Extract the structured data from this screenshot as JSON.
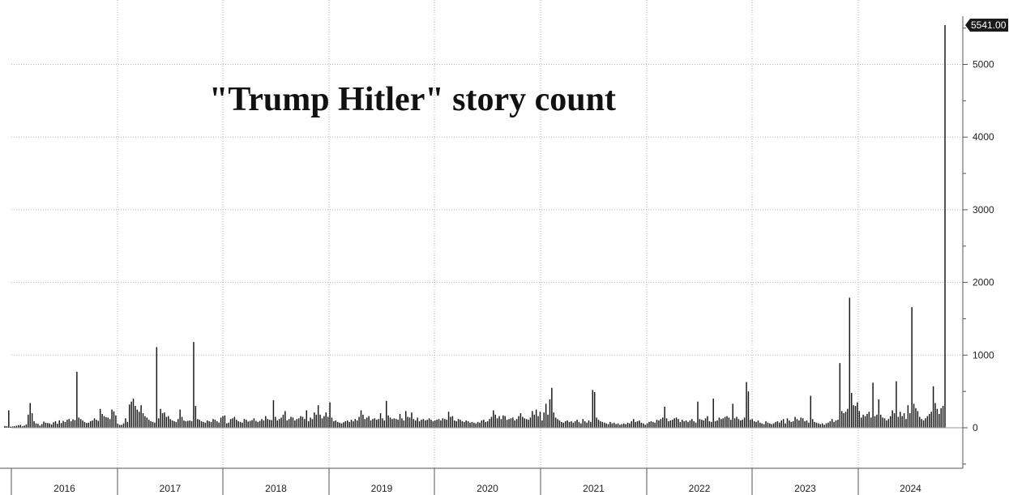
{
  "colors": {
    "bar": "#1a1a1a",
    "grid": "#b5b5b5",
    "axis": "#555555",
    "last_value_badge": "#1a1a1a"
  },
  "chart_data": {
    "type": "bar",
    "title": "\"Trump Hitler\" story count",
    "xlabel": "",
    "ylabel": "",
    "frequency": "weekly",
    "grid": true,
    "ylim": [
      -500,
      5541
    ],
    "y_ticks": [
      0,
      1000,
      2000,
      3000,
      4000,
      5000
    ],
    "x_ticks": [
      "2016",
      "2017",
      "2018",
      "2019",
      "2020",
      "2021",
      "2022",
      "2023",
      "2024"
    ],
    "last_value_label": "5541.00",
    "values": [
      25,
      20,
      240,
      15,
      18,
      22,
      28,
      35,
      40,
      20,
      30,
      45,
      180,
      340,
      200,
      90,
      60,
      55,
      30,
      50,
      85,
      70,
      65,
      60,
      45,
      75,
      90,
      55,
      100,
      65,
      95,
      80,
      110,
      120,
      90,
      115,
      105,
      770,
      140,
      120,
      100,
      80,
      65,
      70,
      90,
      100,
      130,
      110,
      95,
      260,
      190,
      160,
      145,
      140,
      120,
      250,
      225,
      170,
      55,
      40,
      40,
      60,
      130,
      80,
      320,
      360,
      400,
      300,
      250,
      220,
      310,
      200,
      160,
      140,
      110,
      90,
      80,
      70,
      1110,
      130,
      260,
      200,
      210,
      150,
      160,
      120,
      100,
      90,
      80,
      120,
      250,
      150,
      100,
      90,
      95,
      100,
      90,
      1180,
      300,
      120,
      110,
      90,
      80,
      70,
      100,
      90,
      80,
      120,
      110,
      90,
      70,
      140,
      160,
      170,
      60,
      70,
      120,
      130,
      150,
      110,
      90,
      80,
      70,
      120,
      110,
      85,
      95,
      105,
      130,
      95,
      80,
      95,
      120,
      100,
      160,
      120,
      110,
      105,
      380,
      150,
      100,
      120,
      140,
      180,
      230,
      100,
      120,
      150,
      140,
      100,
      120,
      130,
      160,
      150,
      120,
      240,
      90,
      140,
      120,
      210,
      180,
      310,
      180,
      130,
      160,
      210,
      150,
      350,
      140,
      90,
      100,
      80,
      70,
      60,
      75,
      90,
      100,
      80,
      110,
      90,
      120,
      100,
      150,
      240,
      180,
      120,
      140,
      160,
      100,
      120,
      130,
      110,
      120,
      200,
      130,
      100,
      370,
      170,
      140,
      120,
      130,
      120,
      110,
      190,
      130,
      100,
      230,
      150,
      140,
      210,
      120,
      100,
      140,
      90,
      110,
      120,
      100,
      110,
      130,
      110,
      90,
      100,
      110,
      120,
      100,
      130,
      120,
      110,
      220,
      150,
      160,
      100,
      90,
      120,
      110,
      90,
      80,
      100,
      90,
      70,
      80,
      70,
      60,
      80,
      70,
      100,
      110,
      80,
      90,
      120,
      150,
      240,
      180,
      130,
      160,
      120,
      170,
      160,
      110,
      120,
      130,
      140,
      100,
      120,
      160,
      200,
      150,
      130,
      120,
      110,
      140,
      230,
      180,
      250,
      160,
      220,
      100,
      210,
      330,
      180,
      390,
      550,
      210,
      140,
      120,
      100,
      80,
      70,
      90,
      100,
      80,
      90,
      70,
      90,
      110,
      80,
      60,
      120,
      90,
      70,
      100,
      80,
      520,
      490,
      140,
      110,
      90,
      80,
      70,
      60,
      50,
      80,
      60,
      70,
      50,
      60,
      40,
      50,
      60,
      50,
      70,
      60,
      90,
      120,
      80,
      90,
      100,
      70,
      60,
      40,
      60,
      80,
      90,
      80,
      70,
      110,
      100,
      120,
      140,
      290,
      130,
      90,
      100,
      110,
      130,
      140,
      120,
      80,
      110,
      90,
      100,
      80,
      100,
      120,
      90,
      70,
      360,
      120,
      110,
      100,
      130,
      160,
      90,
      80,
      400,
      90,
      100,
      140,
      120,
      130,
      150,
      160,
      140,
      110,
      330,
      130,
      150,
      120,
      100,
      110,
      140,
      630,
      500,
      110,
      120,
      90,
      80,
      100,
      70,
      60,
      50,
      90,
      70,
      60,
      50,
      60,
      80,
      90,
      70,
      100,
      120,
      60,
      130,
      100,
      80,
      90,
      150,
      120,
      100,
      140,
      130,
      90,
      100,
      70,
      440,
      120,
      80,
      70,
      60,
      50,
      60,
      40,
      60,
      70,
      90,
      120,
      80,
      100,
      110,
      890,
      230,
      200,
      220,
      260,
      1790,
      480,
      310,
      300,
      350,
      230,
      140,
      180,
      160,
      190,
      220,
      140,
      620,
      160,
      180,
      390,
      180,
      140,
      130,
      100,
      120,
      160,
      240,
      200,
      640,
      150,
      220,
      160,
      200,
      120,
      310,
      200,
      1660,
      330,
      270,
      230,
      150,
      120,
      100,
      130,
      160,
      190,
      220,
      570,
      340,
      260,
      190,
      270,
      300,
      5541
    ]
  }
}
